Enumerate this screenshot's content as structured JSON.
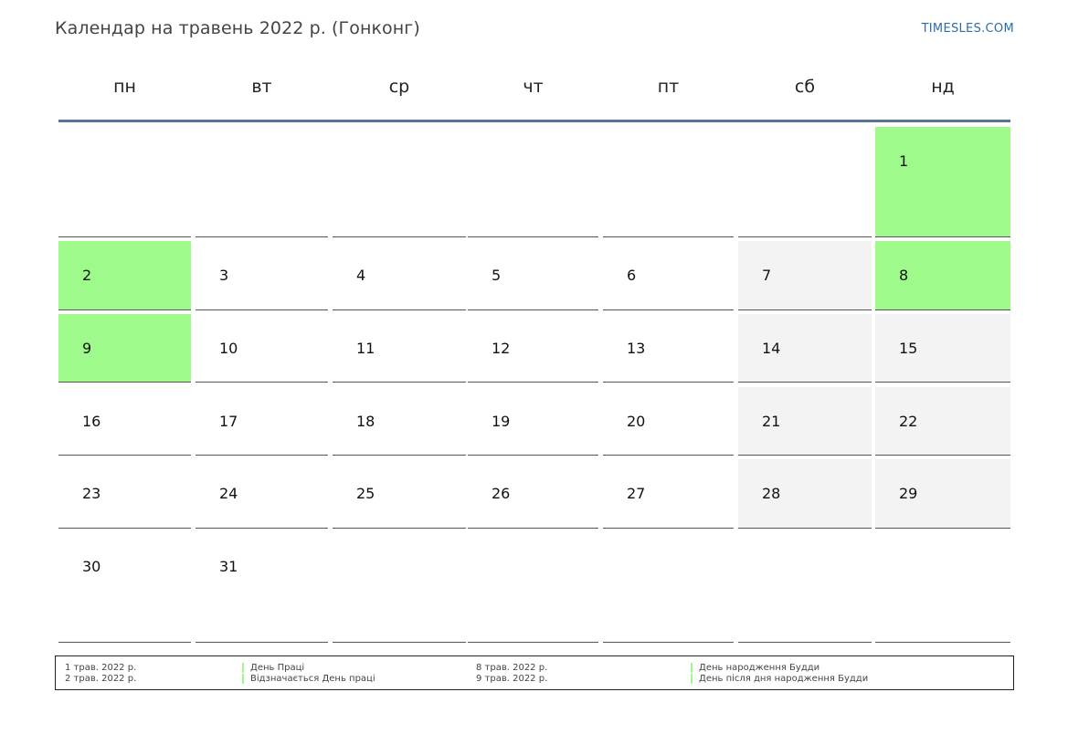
{
  "title": "Календар на травень 2022 р. (Гонконг)",
  "brand": "TIMESLES.COM",
  "colors": {
    "holiday": "#9dfa8b",
    "weekend": "#f3f3f3",
    "header_line": "#5a7396",
    "brand": "#2e6ea6"
  },
  "weekdays": [
    "пн",
    "вт",
    "ср",
    "чт",
    "пт",
    "сб",
    "нд"
  ],
  "weeks": [
    [
      null,
      null,
      null,
      null,
      null,
      null,
      "1"
    ],
    [
      "2",
      "3",
      "4",
      "5",
      "6",
      "7",
      "8"
    ],
    [
      "9",
      "10",
      "11",
      "12",
      "13",
      "14",
      "15"
    ],
    [
      "16",
      "17",
      "18",
      "19",
      "20",
      "21",
      "22"
    ],
    [
      "23",
      "24",
      "25",
      "26",
      "27",
      "28",
      "29"
    ],
    [
      "30",
      "31",
      null,
      null,
      null,
      null,
      null
    ]
  ],
  "holidays": [
    "1",
    "2",
    "8",
    "9"
  ],
  "legend": [
    {
      "date": "1 трав. 2022 р.",
      "name": "День Праці"
    },
    {
      "date": "2 трав. 2022 р.",
      "name": "Відзначається День праці"
    },
    {
      "date": "8 трав. 2022 р.",
      "name": "День народження Будди"
    },
    {
      "date": "9 трав. 2022 р.",
      "name": "День після дня народження Будди"
    }
  ]
}
